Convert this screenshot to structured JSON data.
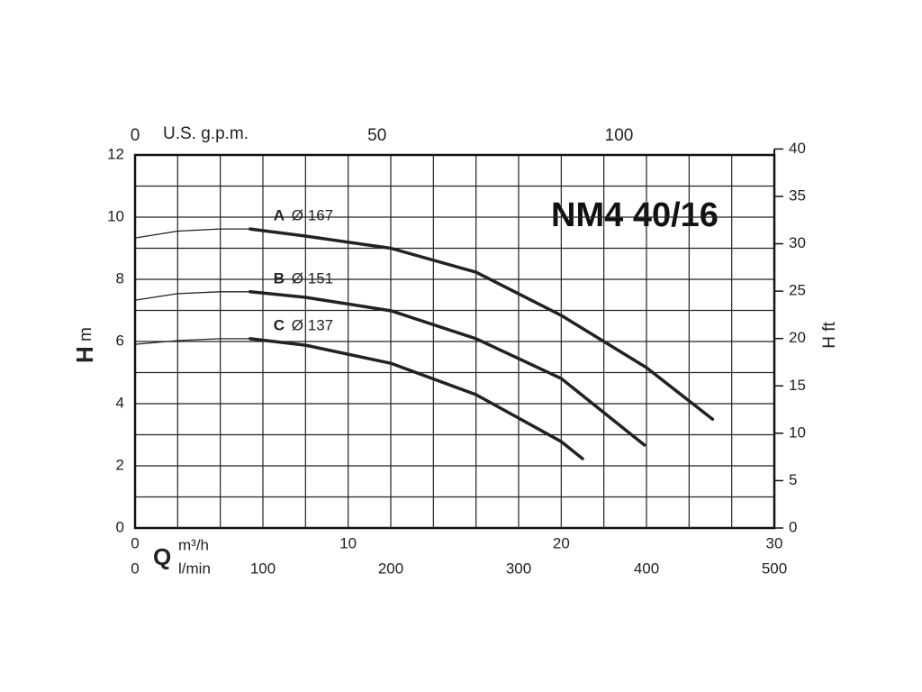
{
  "chart_data": {
    "type": "line",
    "title": "NM4 40/16",
    "x_axis_symbol": "Q",
    "x_axis_label": "m³/h",
    "x2_axis_label": "l/min",
    "top_axis_label": "U.S. g.p.m.",
    "y_axis_label": "H",
    "y_axis_unit": "m",
    "y2_axis_label": "H ft",
    "xlim": [
      0,
      30
    ],
    "xticks": [
      0,
      10,
      20,
      30
    ],
    "xgrid": [
      0,
      2,
      4,
      6,
      8,
      10,
      12,
      14,
      16,
      18,
      20,
      22,
      24,
      26,
      28,
      30
    ],
    "x2lim": [
      0,
      500
    ],
    "x2ticks": [
      0,
      100,
      200,
      300,
      400,
      500
    ],
    "x3lim": [
      0,
      132.09
    ],
    "x3ticks": [
      0,
      50,
      100
    ],
    "ylim": [
      0,
      12
    ],
    "yticks": [
      0,
      2,
      4,
      6,
      8,
      10,
      12
    ],
    "ygrid": [
      0,
      1,
      2,
      3,
      4,
      5,
      6,
      7,
      8,
      9,
      10,
      11,
      12
    ],
    "y2lim": [
      0,
      39.37
    ],
    "y2ticks": [
      0,
      5,
      10,
      15,
      20,
      25,
      30,
      35,
      40
    ],
    "grid": true,
    "color": "#222",
    "series": [
      {
        "name": "A",
        "diameter": "Ø 167",
        "x": [
          0,
          2,
          4,
          5.4,
          8,
          12,
          16,
          20,
          24,
          27.1
        ],
        "values": [
          9.33,
          9.55,
          9.62,
          9.62,
          9.39,
          9.0,
          8.23,
          6.84,
          5.16,
          3.5
        ]
      },
      {
        "name": "B",
        "diameter": "Ø 151",
        "x": [
          0,
          2,
          4,
          5.4,
          8,
          12,
          16,
          20,
          23.9
        ],
        "values": [
          7.33,
          7.54,
          7.6,
          7.6,
          7.42,
          6.99,
          6.09,
          4.81,
          2.67
        ]
      },
      {
        "name": "C",
        "diameter": "Ø 137",
        "x": [
          0,
          2,
          4,
          5.4,
          8,
          12,
          16,
          20,
          21
        ],
        "values": [
          5.91,
          6.03,
          6.09,
          6.09,
          5.88,
          5.3,
          4.29,
          2.78,
          2.23
        ]
      }
    ],
    "duty_start": 5.4
  }
}
